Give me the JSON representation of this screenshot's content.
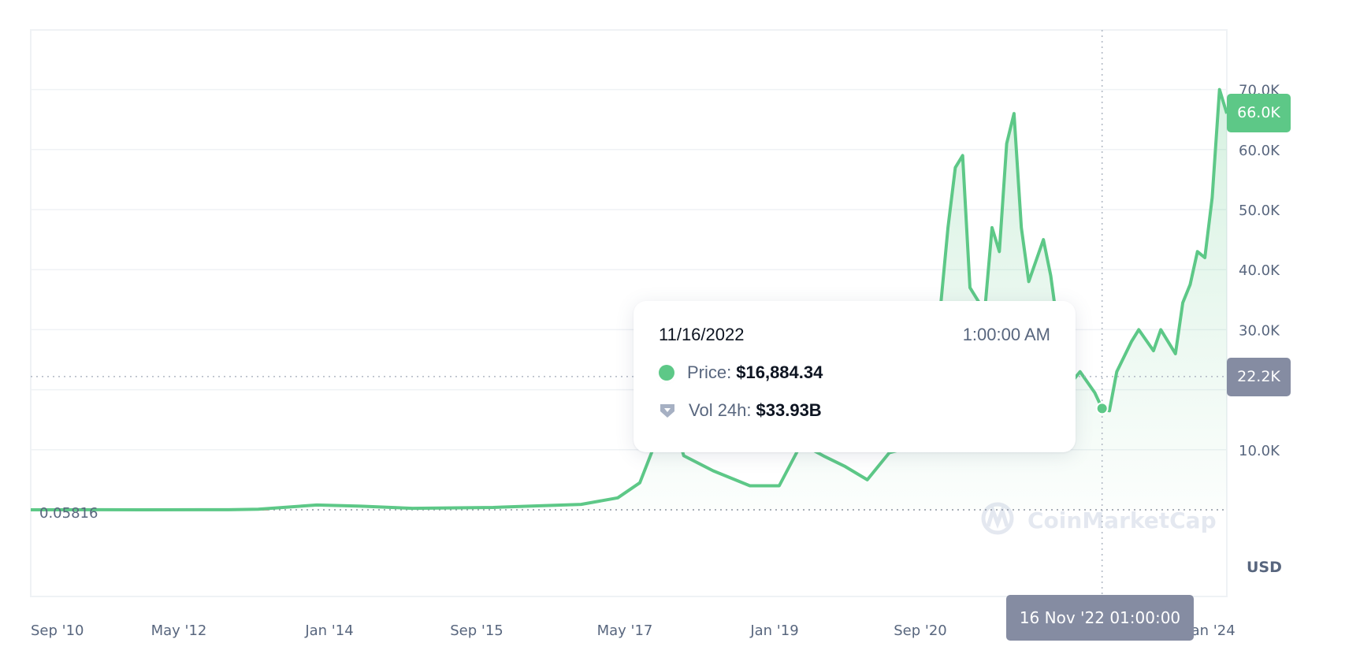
{
  "chart_data": {
    "type": "area",
    "currency": "USD",
    "xlim": [
      "2010-09",
      "2024-04"
    ],
    "ylim": [
      0,
      75000
    ],
    "grid": true,
    "x_ticks": [
      "Sep '10",
      "May '12",
      "Jan '14",
      "Sep '15",
      "May '17",
      "Jan '19",
      "Sep '20",
      "Jan '24"
    ],
    "y_ticks": [
      "10.0K",
      "30.0K",
      "40.0K",
      "50.0K",
      "60.0K",
      "70.0K"
    ],
    "y_tick_values": [
      10000,
      30000,
      40000,
      50000,
      60000,
      70000
    ],
    "start_price_label": "0.05816",
    "current_price_label": "66.0K",
    "crosshair_price_label": "22.2K",
    "crosshair_price": 22200,
    "crosshair_date_label": "16 Nov '22 01:00:00",
    "watermark": "CoinMarketCap",
    "colors": {
      "line": "#5dc887",
      "fill": "#5dc887",
      "current_badge": "#5dc887",
      "crosshair_badge": "#858ca2",
      "axis_text": "#58667e"
    },
    "series": [
      {
        "points": [
          [
            "2010-09",
            0.06
          ],
          [
            "2011-06",
            15
          ],
          [
            "2011-12",
            3
          ],
          [
            "2012-12",
            13
          ],
          [
            "2013-04",
            100
          ],
          [
            "2013-12",
            800
          ],
          [
            "2014-06",
            600
          ],
          [
            "2015-01",
            250
          ],
          [
            "2015-12",
            400
          ],
          [
            "2016-06",
            650
          ],
          [
            "2016-12",
            900
          ],
          [
            "2017-05",
            2000
          ],
          [
            "2017-08",
            4500
          ],
          [
            "2017-12",
            17000
          ],
          [
            "2018-02",
            9000
          ],
          [
            "2018-06",
            6500
          ],
          [
            "2018-11",
            4000
          ],
          [
            "2019-03",
            4000
          ],
          [
            "2019-06",
            11000
          ],
          [
            "2019-09",
            9000
          ],
          [
            "2019-12",
            7200
          ],
          [
            "2020-03",
            5000
          ],
          [
            "2020-06",
            9500
          ],
          [
            "2020-09",
            10500
          ],
          [
            "2020-12",
            25000
          ],
          [
            "2021-01",
            34000
          ],
          [
            "2021-02",
            47000
          ],
          [
            "2021-03",
            57000
          ],
          [
            "2021-04",
            59000
          ],
          [
            "2021-05",
            37000
          ],
          [
            "2021-06",
            35000
          ],
          [
            "2021-07",
            33000
          ],
          [
            "2021-08",
            47000
          ],
          [
            "2021-09",
            43000
          ],
          [
            "2021-10",
            61000
          ],
          [
            "2021-11",
            66000
          ],
          [
            "2021-12",
            47000
          ],
          [
            "2022-01",
            38000
          ],
          [
            "2022-03",
            45000
          ],
          [
            "2022-04",
            39000
          ],
          [
            "2022-05",
            30000
          ],
          [
            "2022-06",
            20000
          ],
          [
            "2022-08",
            23000
          ],
          [
            "2022-10",
            19500
          ],
          [
            "2022-11",
            16884
          ],
          [
            "2022-12",
            16500
          ],
          [
            "2023-01",
            23000
          ],
          [
            "2023-03",
            28000
          ],
          [
            "2023-04",
            30000
          ],
          [
            "2023-06",
            26500
          ],
          [
            "2023-07",
            30000
          ],
          [
            "2023-09",
            26000
          ],
          [
            "2023-10",
            34500
          ],
          [
            "2023-11",
            37500
          ],
          [
            "2023-12",
            43000
          ],
          [
            "2024-01",
            42000
          ],
          [
            "2024-02",
            52000
          ],
          [
            "2024-03",
            70000
          ],
          [
            "2024-04",
            66000
          ]
        ]
      }
    ],
    "highlight": {
      "date": "2022-11",
      "price": 16884.34
    }
  },
  "tooltip": {
    "date": "11/16/2022",
    "time": "1:00:00 AM",
    "price_label": "Price:",
    "price_value": "$16,884.34",
    "volume_label": "Vol 24h:",
    "volume_value": "$33.93B"
  }
}
